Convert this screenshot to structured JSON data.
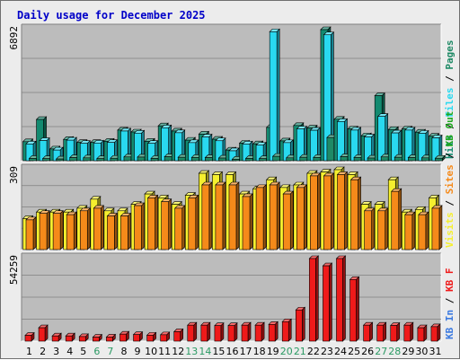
{
  "title": "Daily usage for December 2025",
  "colors": {
    "title": "#0000c8",
    "plot_bg": "#bcbcbc",
    "grid": "#808080",
    "pages": "#1f8a66",
    "files": "#29d9f0",
    "hits": "#138a70",
    "visits": "#f5ef2e",
    "sites": "#f58a1a",
    "kbf": "#ef1a1a",
    "kbin": "#3c7ae0",
    "kbout": "#1ea81e",
    "weekend": "#2b9a64",
    "weekday": "#000000"
  },
  "chart_data": {
    "type": "bar",
    "categories": [
      "1",
      "2",
      "3",
      "4",
      "5",
      "6",
      "7",
      "8",
      "9",
      "10",
      "11",
      "12",
      "13",
      "14",
      "15",
      "16",
      "17",
      "18",
      "19",
      "20",
      "21",
      "22",
      "23",
      "24",
      "25",
      "26",
      "27",
      "28",
      "29",
      "30",
      "31"
    ],
    "weekend_days": [
      "6",
      "7",
      "13",
      "14",
      "20",
      "21",
      "27",
      "28"
    ],
    "panels": [
      {
        "max_label": "6892",
        "ymax": 6892,
        "series": [
          {
            "name": "Hits",
            "color_key": "hits",
            "values": [
              1000,
              2170,
              620,
              1120,
              960,
              960,
              1020,
              1610,
              1510,
              1020,
              1830,
              1560,
              1080,
              1400,
              1130,
              560,
              920,
              890,
              1750,
              1040,
              1850,
              1720,
              6892,
              2180,
              1670,
              1310,
              3420,
              1640,
              1670,
              1500,
              1290
            ]
          },
          {
            "name": "Files",
            "color_key": "files",
            "values": [
              880,
              1060,
              560,
              1080,
              910,
              930,
              960,
              1560,
              1450,
              910,
              1730,
              1470,
              950,
              1250,
              1050,
              520,
              880,
              820,
              6780,
              950,
              1670,
              1600,
              6620,
              2060,
              1610,
              1250,
              2330,
              1460,
              1610,
              1440,
              1200
            ]
          },
          {
            "name": "Pages",
            "color_key": "pages",
            "values": [
              120,
              110,
              90,
              160,
              150,
              110,
              130,
              200,
              190,
              120,
              210,
              180,
              170,
              160,
              140,
              80,
              120,
              110,
              230,
              150,
              180,
              170,
              1220,
              210,
              170,
              140,
              200,
              180,
              160,
              150,
              130
            ]
          }
        ],
        "legend": [
          {
            "text": "Hits",
            "color_key": "hits"
          },
          {
            "text": "Files",
            "color_key": "files"
          },
          {
            "text": "Pages",
            "color_key": "pages"
          }
        ]
      },
      {
        "max_label": "309",
        "ymax": 309,
        "series": [
          {
            "name": "Visits",
            "color_key": "visits",
            "values": [
              120,
              145,
              145,
              145,
              160,
              195,
              150,
              150,
              175,
              215,
              200,
              175,
              210,
              295,
              290,
              290,
              215,
              235,
              270,
              240,
              250,
              295,
              300,
              309,
              290,
              175,
              175,
              270,
              145,
              155,
              200
            ]
          },
          {
            "name": "Sites",
            "color_key": "sites",
            "values": [
              115,
              140,
              140,
              135,
              150,
              160,
              130,
              130,
              170,
              200,
              185,
              160,
              200,
              250,
              250,
              250,
              205,
              240,
              250,
              215,
              240,
              285,
              285,
              290,
              270,
              150,
              150,
              225,
              135,
              135,
              160
            ]
          }
        ],
        "legend": [
          {
            "text": "Visits",
            "color_key": "visits"
          },
          {
            "text": "Sites",
            "color_key": "sites"
          },
          {
            "text": "KB Out",
            "color_key": "kbout"
          }
        ]
      },
      {
        "max_label": "54259",
        "ymax": 54259,
        "series": [
          {
            "name": "KB F",
            "color_key": "kbf",
            "values": [
              3800,
              8800,
              3400,
              3400,
              3000,
              2600,
              2700,
              4600,
              4300,
              3900,
              4200,
              6200,
              10500,
              10500,
              10200,
              10200,
              10500,
              10500,
              11000,
              12800,
              20500,
              54259,
              49500,
              54259,
              40500,
              10500,
              10500,
              10300,
              10500,
              8800,
              9500
            ]
          }
        ],
        "legend": [
          {
            "text": "KB In",
            "color_key": "kbin"
          },
          {
            "text": "KB F",
            "color_key": "kbf"
          }
        ]
      }
    ]
  }
}
